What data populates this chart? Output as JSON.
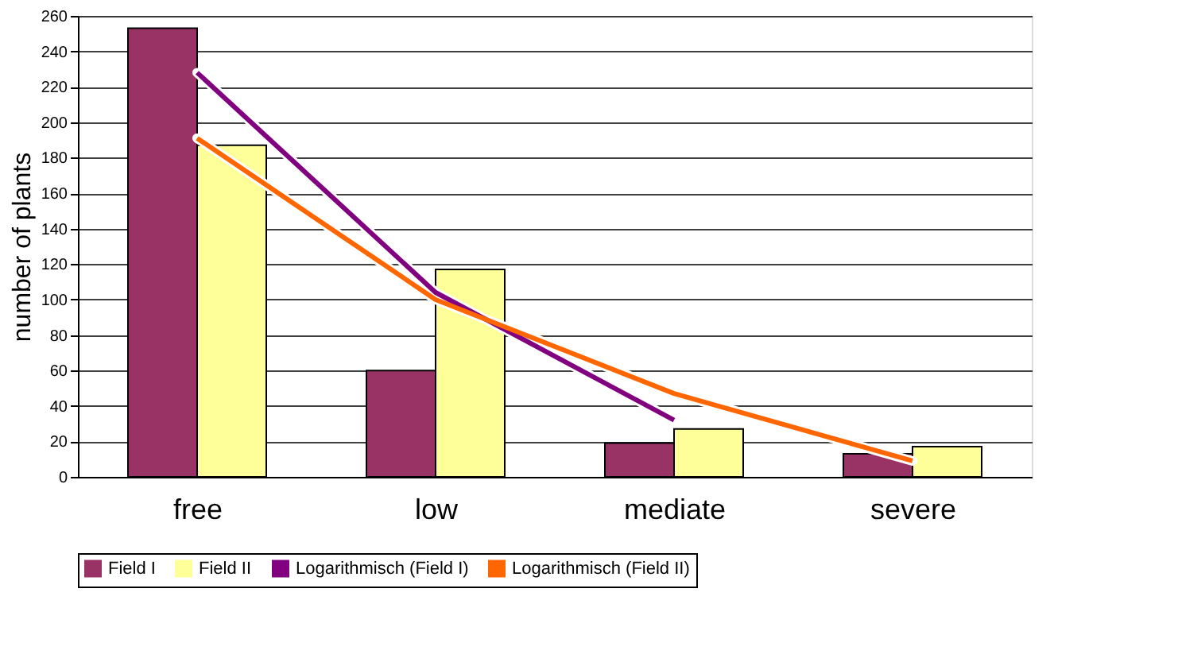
{
  "chart_data": {
    "type": "bar",
    "ylabel": "number of plants",
    "categories": [
      "free",
      "low",
      "mediate",
      "severe"
    ],
    "series": [
      {
        "name": "Field I",
        "color": "#993366",
        "values": [
          253,
          60,
          19,
          13
        ]
      },
      {
        "name": "Field II",
        "color": "#ffff99",
        "values": [
          187,
          117,
          27,
          17
        ]
      },
      {
        "name": "Logarithmisch (Field I)",
        "type": "line",
        "color": "#800080",
        "values": [
          228,
          104,
          32,
          null
        ]
      },
      {
        "name": "Logarithmisch (Field II)",
        "type": "line",
        "color": "#ff6600",
        "values": [
          191,
          100,
          47,
          9
        ]
      }
    ],
    "ylim": [
      0,
      260
    ],
    "yticks": [
      0,
      20,
      40,
      60,
      80,
      100,
      120,
      140,
      160,
      180,
      200,
      220,
      240,
      260
    ],
    "grid": "y",
    "legend": "bottom"
  }
}
